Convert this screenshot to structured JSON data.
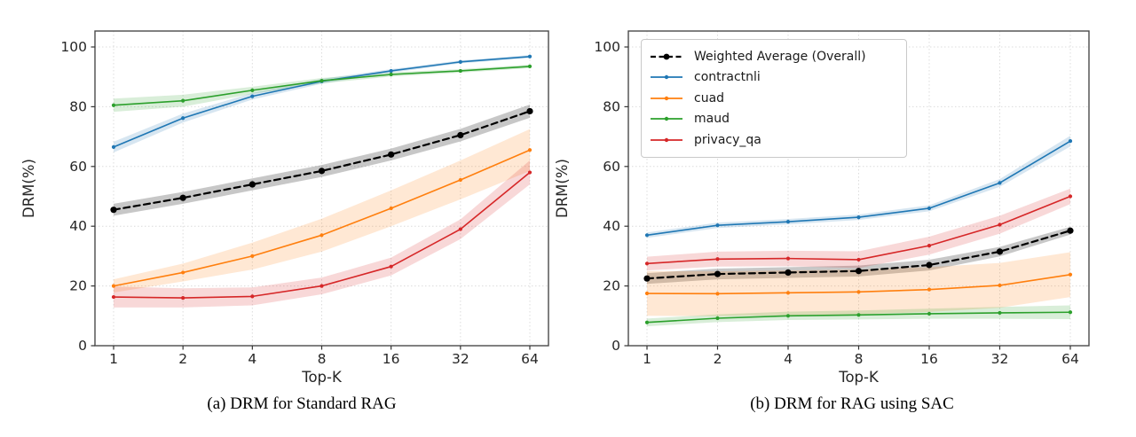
{
  "figure": {
    "background": "#ffffff",
    "caption_a": "(a) DRM for Standard RAG",
    "caption_b": "(b) DRM for RAG using SAC"
  },
  "axes": {
    "x_label": "Top-K",
    "y_label": "DRM(%)",
    "x_tick_labels": [
      "1",
      "2",
      "4",
      "8",
      "16",
      "32",
      "64"
    ],
    "y_tick_values": [
      0,
      20,
      40,
      60,
      80,
      100
    ]
  },
  "colors": {
    "weighted": "#000000",
    "contractnli": "#1f77b4",
    "cuad": "#ff7f0e",
    "maud": "#2ca02c",
    "privacy_qa": "#d62728",
    "grid": "#dcdcdc",
    "spine": "#4a4a4a",
    "tick": "#333333",
    "text": "#262626",
    "band_gray": "rgba(0,0,0,0.22)"
  },
  "legend": {
    "entries": [
      {
        "label": "Weighted Average (Overall)",
        "series": "weighted",
        "dashed": true
      },
      {
        "label": "contractnli",
        "series": "contractnli",
        "dashed": false
      },
      {
        "label": "cuad",
        "series": "cuad",
        "dashed": false
      },
      {
        "label": "maud",
        "series": "maud",
        "dashed": false
      },
      {
        "label": "privacy_qa",
        "series": "privacy_qa",
        "dashed": false
      }
    ]
  },
  "chart_data": [
    {
      "type": "line",
      "title": "(a) DRM for Standard RAG",
      "xlabel": "Top-K",
      "ylabel": "DRM(%)",
      "x": [
        1,
        2,
        4,
        8,
        16,
        32,
        64
      ],
      "x_scale": "log2",
      "ylim": [
        0,
        105
      ],
      "grid": true,
      "legend_position": "none",
      "series": [
        {
          "name": "Weighted Average (Overall)",
          "key": "weighted",
          "dashed": true,
          "values": [
            45.5,
            49.5,
            54.0,
            58.5,
            64.0,
            70.5,
            78.5
          ],
          "band_halfwidth": [
            2.0,
            2.0,
            2.0,
            2.0,
            2.0,
            2.1,
            2.2
          ]
        },
        {
          "name": "contractnli",
          "key": "contractnli",
          "dashed": false,
          "values": [
            66.5,
            76.2,
            83.5,
            88.5,
            92.0,
            95.0,
            96.8
          ],
          "band_halfwidth": [
            1.8,
            1.5,
            1.1,
            0.8,
            0.6,
            0.5,
            0.5
          ]
        },
        {
          "name": "cuad",
          "key": "cuad",
          "dashed": false,
          "values": [
            20.0,
            24.5,
            30.0,
            37.0,
            46.0,
            55.5,
            65.5
          ],
          "band_halfwidth": [
            2.2,
            3.0,
            4.5,
            5.5,
            6.0,
            6.5,
            7.0
          ]
        },
        {
          "name": "maud",
          "key": "maud",
          "dashed": false,
          "values": [
            80.5,
            82.0,
            85.5,
            88.7,
            90.8,
            92.0,
            93.5
          ],
          "band_halfwidth": [
            2.2,
            2.0,
            1.2,
            0.9,
            0.7,
            0.6,
            0.6
          ]
        },
        {
          "name": "privacy_qa",
          "key": "privacy_qa",
          "dashed": false,
          "values": [
            16.3,
            16.0,
            16.5,
            20.0,
            26.5,
            39.0,
            58.0
          ],
          "band_halfwidth": [
            3.5,
            3.2,
            3.0,
            2.8,
            3.0,
            3.3,
            4.0
          ]
        }
      ]
    },
    {
      "type": "line",
      "title": "(b) DRM for RAG using SAC",
      "xlabel": "Top-K",
      "ylabel": "DRM(%)",
      "x": [
        1,
        2,
        4,
        8,
        16,
        32,
        64
      ],
      "x_scale": "log2",
      "ylim": [
        0,
        105
      ],
      "grid": true,
      "legend_position": "upper left",
      "series": [
        {
          "name": "Weighted Average (Overall)",
          "key": "weighted",
          "dashed": true,
          "values": [
            22.5,
            24.0,
            24.5,
            25.0,
            27.0,
            31.5,
            38.5
          ],
          "band_halfwidth": [
            1.8,
            1.8,
            1.8,
            1.8,
            1.8,
            1.6,
            1.3
          ]
        },
        {
          "name": "contractnli",
          "key": "contractnli",
          "dashed": false,
          "values": [
            37.0,
            40.3,
            41.5,
            43.0,
            46.0,
            54.5,
            68.5
          ],
          "band_halfwidth": [
            0.9,
            0.9,
            0.9,
            0.9,
            1.0,
            1.3,
            1.8
          ]
        },
        {
          "name": "cuad",
          "key": "cuad",
          "dashed": false,
          "values": [
            17.5,
            17.4,
            17.7,
            18.0,
            18.8,
            20.2,
            23.8
          ],
          "band_halfwidth": [
            7.5,
            7.5,
            7.5,
            7.5,
            7.5,
            7.5,
            7.5
          ]
        },
        {
          "name": "maud",
          "key": "maud",
          "dashed": false,
          "values": [
            7.8,
            9.2,
            10.0,
            10.3,
            10.7,
            11.0,
            11.2
          ],
          "band_halfwidth": [
            1.3,
            1.3,
            1.4,
            1.5,
            1.7,
            2.0,
            2.3
          ]
        },
        {
          "name": "privacy_qa",
          "key": "privacy_qa",
          "dashed": false,
          "values": [
            27.5,
            29.0,
            29.2,
            28.8,
            33.5,
            40.5,
            50.0
          ],
          "band_halfwidth": [
            2.3,
            2.5,
            2.6,
            2.8,
            3.0,
            3.0,
            2.6
          ]
        }
      ]
    }
  ]
}
